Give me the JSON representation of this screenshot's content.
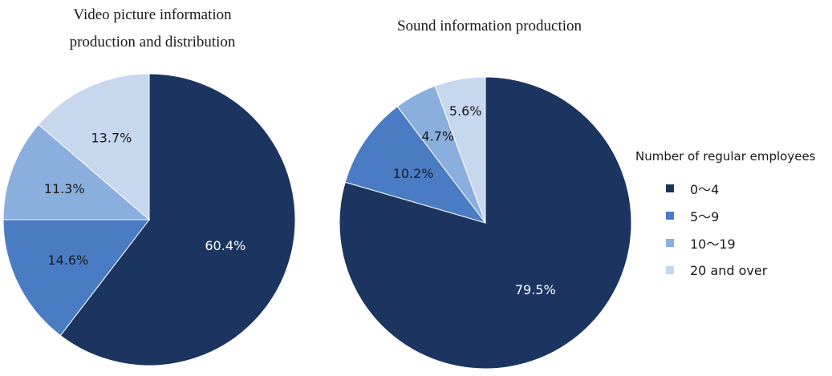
{
  "chart_data": [
    {
      "type": "pie",
      "title_lines": [
        "Video picture information",
        "production and distribution"
      ],
      "categories": [
        "0〜4",
        "5〜9",
        "10〜19",
        "20 and over"
      ],
      "values": [
        60.4,
        14.6,
        11.3,
        13.7
      ],
      "labels": [
        "60.4%",
        "14.6%",
        "11.3%",
        "13.7%"
      ]
    },
    {
      "type": "pie",
      "title_lines": [
        "Sound information production"
      ],
      "categories": [
        "0〜4",
        "5〜9",
        "10〜19",
        "20 and over"
      ],
      "values": [
        79.5,
        10.2,
        4.7,
        5.6
      ],
      "labels": [
        "79.5%",
        "10.2%",
        "4.7%",
        "5.6%"
      ]
    }
  ],
  "legend": {
    "title": "Number of regular employees",
    "items": [
      "0〜4",
      "5〜9",
      "10〜19",
      "20 and over"
    ],
    "placement": "right"
  },
  "colors": [
    "#1c3560",
    "#4a7cc4",
    "#8aaedd",
    "#c7d7ee"
  ],
  "label_colors": [
    "#ffffff",
    "#1a1a1a",
    "#1a1a1a",
    "#1a1a1a"
  ]
}
